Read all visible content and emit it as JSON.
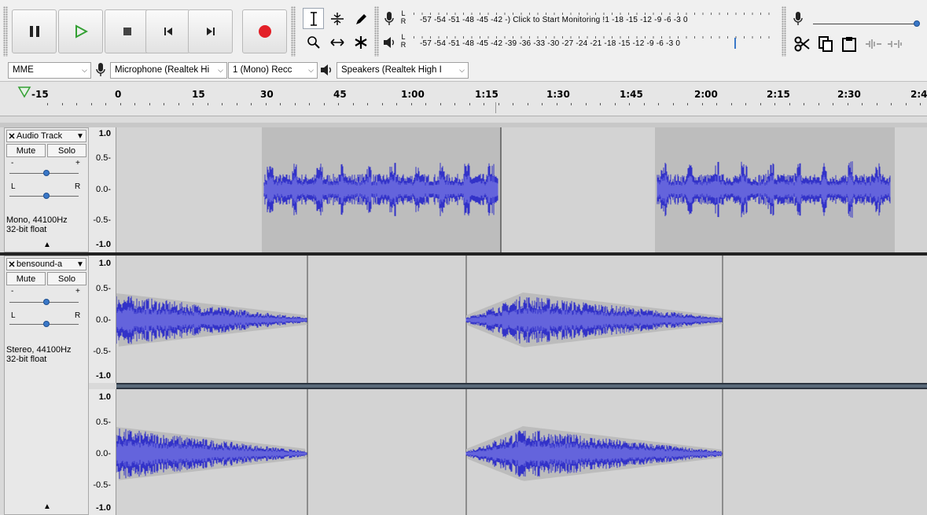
{
  "colors": {
    "waveform": "#3232c8",
    "waveform_rms": "#6464dc",
    "clip_selected_bg": "#bdbdbd",
    "track_bg": "#d3d3d3",
    "record_red": "#e32028",
    "play_green": "#33a033"
  },
  "transport": {
    "pause_icon": "pause-icon",
    "play_icon": "play-icon",
    "stop_icon": "stop-icon",
    "skip_start_icon": "skip-to-start-icon",
    "skip_end_icon": "skip-to-end-icon",
    "record_icon": "record-icon"
  },
  "meters": {
    "record": {
      "channels_label": [
        "L",
        "R"
      ],
      "scale_text": "-57 -54 -51 -48 -45 -42 -) Click to Start Monitoring !1 -18 -15 -12 -9 -6 -3 0"
    },
    "playback": {
      "channels_label": [
        "L",
        "R"
      ],
      "scale_text": "-57 -54 -51 -48 -45 -42 -39 -36 -33 -30 -27 -24 -21 -18 -15 -12 -9 -6 -3 0"
    }
  },
  "devices": {
    "host": "MME",
    "recording_device": "Microphone (Realtek Hi",
    "channels": "1 (Mono) Recc",
    "playback_device": "Speakers (Realtek High I"
  },
  "ruler": {
    "labels": [
      "-15",
      "0",
      "15",
      "30",
      "45",
      "1:00",
      "1:15",
      "1:30",
      "1:45",
      "2:00",
      "2:15",
      "2:30",
      "2:4"
    ]
  },
  "tracks": [
    {
      "name": "Audio Track",
      "mute_label": "Mute",
      "solo_label": "Solo",
      "gain_minus": "-",
      "gain_plus": "+",
      "pan_left": "L",
      "pan_right": "R",
      "info_line1": "Mono, 44100Hz",
      "info_line2": "32-bit float",
      "scale": [
        "1.0",
        "0.5-",
        "0.0-",
        "-0.5-",
        "-1.0"
      ]
    },
    {
      "name": "bensound-a",
      "mute_label": "Mute",
      "solo_label": "Solo",
      "gain_minus": "-",
      "gain_plus": "+",
      "pan_left": "L",
      "pan_right": "R",
      "info_line1": "Stereo, 44100Hz",
      "info_line2": "32-bit float",
      "scale_left": [
        "1.0",
        "0.5-",
        "0.0-",
        "-0.5-",
        "-1.0"
      ],
      "scale_right": [
        "1.0",
        "0.5-",
        "0.0-",
        "-0.5-",
        "-1.0"
      ]
    }
  ]
}
